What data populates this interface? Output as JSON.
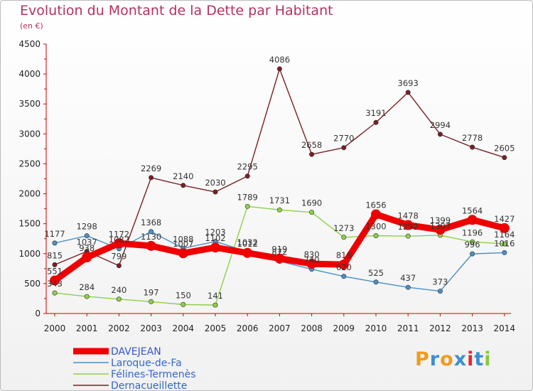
{
  "title": "Evolution du Montant de la Dette par Habitant",
  "unit": "(en €)",
  "brand": {
    "text": "Proxiti",
    "letter_colors": [
      "#f39a1c",
      "#3b8fd0",
      "#f39a1c",
      "#3b8fd0",
      "#e02a2a",
      "#3b8fd0",
      "#8cc63e"
    ]
  },
  "chart_data": {
    "type": "line",
    "x": [
      "2000",
      "2001",
      "2002",
      "2003",
      "2004",
      "2005",
      "2006",
      "2007",
      "2008",
      "2009",
      "2010",
      "2011",
      "2012",
      "2013",
      "2014"
    ],
    "ylim": [
      0,
      4500
    ],
    "yticks": [
      0,
      500,
      1000,
      1500,
      2000,
      2500,
      3000,
      3500,
      4000,
      4500
    ],
    "grid": false,
    "legend_position": "bottom-left",
    "series": [
      {
        "name": "DAVEJEAN",
        "color": "#ee0000",
        "values": [
          551,
          938,
          1172,
          1130,
          1007,
          1102,
          1012,
          919,
          830,
          818,
          1656,
          1478,
          1399,
          1564,
          1427
        ],
        "labels": [
          "551",
          "938",
          "1172",
          "1130",
          "1007",
          "1102",
          "1012",
          "919",
          "830",
          "818",
          "1656",
          "1478",
          "1399",
          "1564",
          "1427"
        ]
      },
      {
        "name": "Laroque-de-Fa",
        "color": "#4a90c8",
        "values": [
          1177,
          1298,
          1082,
          1368,
          1088,
          1203,
          1032,
          872,
          740,
          620,
          525,
          437,
          373,
          996,
          1016
        ],
        "labels": [
          "1177",
          "1298",
          "1082",
          "1368",
          "1088",
          "1203",
          "1032",
          "872",
          "740",
          "620",
          "525",
          "437",
          "373",
          "996",
          "1016"
        ]
      },
      {
        "name": "Félines-Termenès",
        "color": "#8ed04a",
        "values": [
          343,
          284,
          240,
          197,
          150,
          141,
          1789,
          1731,
          1690,
          1273,
          1300,
          1292,
          1307,
          1196,
          1164
        ],
        "labels": [
          "343",
          "284",
          "240",
          "197",
          "150",
          "141",
          "1789",
          "1731",
          "1690",
          "1273",
          "1300",
          "1292",
          "1307",
          "1196",
          "1164"
        ]
      },
      {
        "name": "Dernacueillette",
        "color": "#7a1f24",
        "values": [
          815,
          1037,
          799,
          2269,
          2140,
          2030,
          2295,
          4086,
          2658,
          2770,
          3191,
          3693,
          2994,
          2778,
          2605
        ],
        "labels": [
          "815",
          "1037",
          "799",
          "2269",
          "2140",
          "2030",
          "2295",
          "4086",
          "2658",
          "2770",
          "3191",
          "3693",
          "2994",
          "2778",
          "2605"
        ]
      }
    ]
  }
}
